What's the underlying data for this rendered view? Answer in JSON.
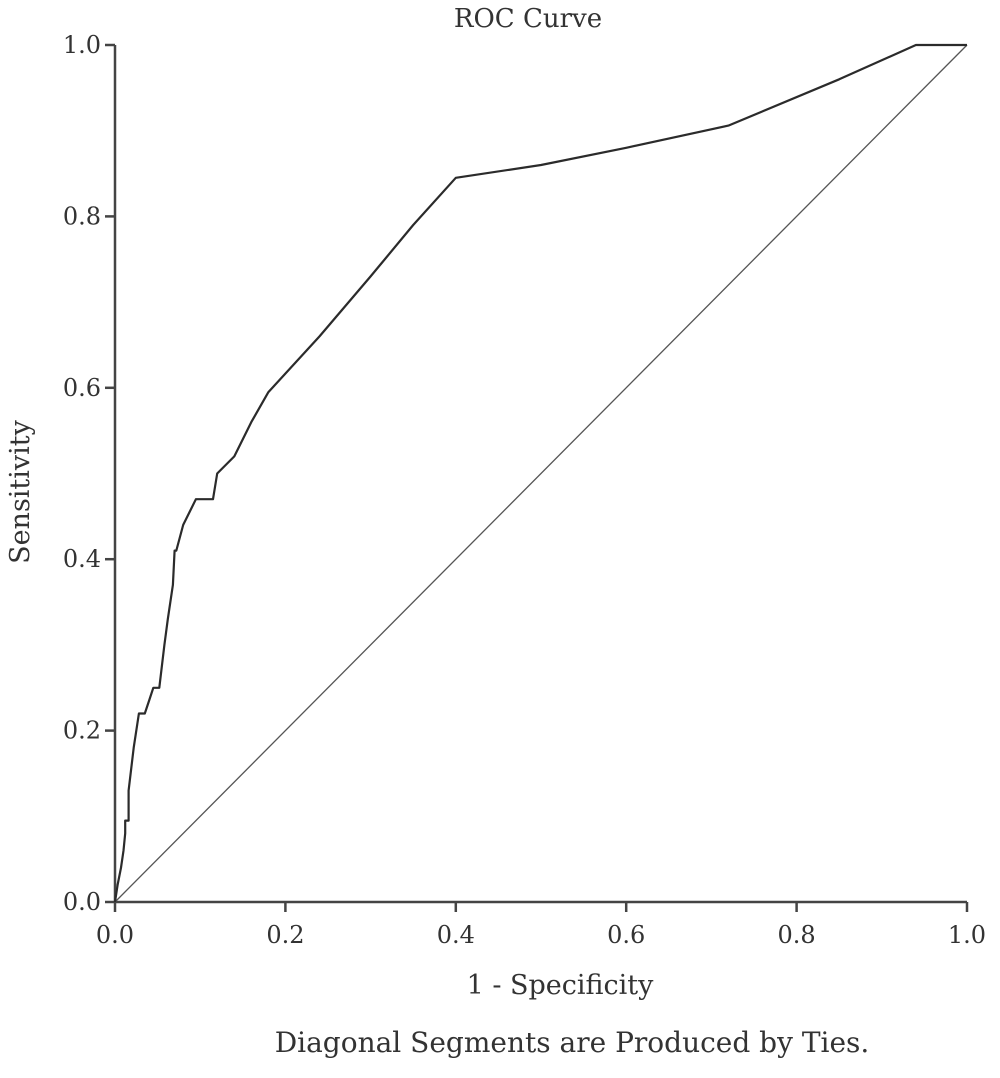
{
  "chart_data": {
    "type": "line",
    "title": "ROC Curve",
    "xlabel": "1 - Specificity",
    "ylabel": "Sensitivity",
    "footnote": "Diagonal Segments are Produced by Ties.",
    "xlim": [
      0,
      1
    ],
    "ylim": [
      0,
      1
    ],
    "x_ticks": [
      "0.0",
      "0.2",
      "0.4",
      "0.6",
      "0.8",
      "1.0"
    ],
    "y_ticks": [
      "0.0",
      "0.2",
      "0.4",
      "0.6",
      "0.8",
      "1.0"
    ],
    "grid": false,
    "legend": "none",
    "series": [
      {
        "x": [
          0.0,
          0.003,
          0.007,
          0.01,
          0.012,
          0.012,
          0.016,
          0.016,
          0.022,
          0.028,
          0.035,
          0.04,
          0.045,
          0.052,
          0.058,
          0.062,
          0.068,
          0.07,
          0.072,
          0.08,
          0.095,
          0.108,
          0.115,
          0.12,
          0.14,
          0.16,
          0.18,
          0.24,
          0.3,
          0.35,
          0.4,
          0.5,
          0.6,
          0.72,
          0.85,
          0.94,
          0.97,
          1.0
        ],
        "y": [
          0.0,
          0.02,
          0.04,
          0.06,
          0.08,
          0.095,
          0.095,
          0.13,
          0.18,
          0.22,
          0.22,
          0.235,
          0.25,
          0.25,
          0.3,
          0.33,
          0.37,
          0.41,
          0.41,
          0.44,
          0.47,
          0.47,
          0.47,
          0.5,
          0.52,
          0.56,
          0.595,
          0.66,
          0.73,
          0.79,
          0.845,
          0.86,
          0.88,
          0.906,
          0.96,
          1.0,
          1.0,
          1.0
        ]
      },
      {
        "x": [
          0.0,
          1.0
        ],
        "y": [
          0.0,
          1.0
        ]
      }
    ]
  }
}
